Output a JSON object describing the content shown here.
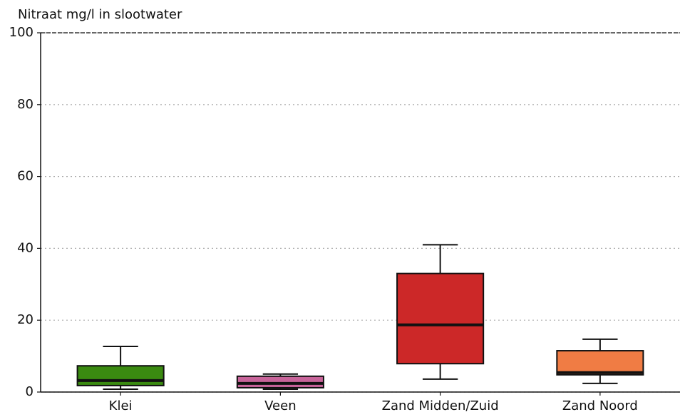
{
  "chart_data": {
    "type": "box",
    "title": "Nitraat mg/l in slootwater",
    "categories": [
      "Klei",
      "Veen",
      "Zand Midden/Zuid",
      "Zand Noord"
    ],
    "colors": [
      "#3a8a10",
      "#c8649a",
      "#cc2828",
      "#f07c44"
    ],
    "boxes": [
      {
        "min": 0.8,
        "q1": 1.8,
        "median": 3.2,
        "q3": 7.3,
        "max": 12.7
      },
      {
        "min": 0.8,
        "q1": 1.2,
        "median": 2.4,
        "q3": 4.4,
        "max": 5.0
      },
      {
        "min": 3.6,
        "q1": 7.9,
        "median": 18.7,
        "q3": 33,
        "max": 41
      },
      {
        "min": 2.4,
        "q1": 4.8,
        "median": 5.4,
        "q3": 11.5,
        "max": 14.7
      }
    ],
    "ylim": [
      0,
      100
    ],
    "yticks": [
      0,
      20,
      40,
      60,
      80,
      100
    ],
    "grid": true
  }
}
